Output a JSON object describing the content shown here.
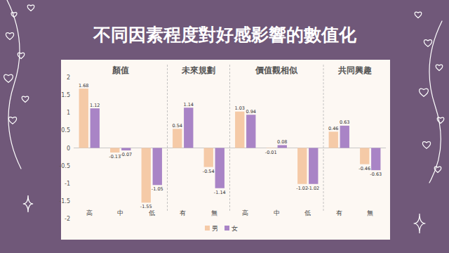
{
  "chart_data": {
    "type": "bar",
    "title": "不同因素程度對好感影響的數值化",
    "categories": [
      "高",
      "中",
      "低",
      "有",
      "無",
      "高",
      "中",
      "低",
      "有",
      "無"
    ],
    "groups": [
      {
        "label": "顏值",
        "size": 3
      },
      {
        "label": "未來規劃",
        "size": 2
      },
      {
        "label": "價值觀相似",
        "size": 3
      },
      {
        "label": "共同興趣",
        "size": 2
      }
    ],
    "series": [
      {
        "name": "男",
        "color": "#f5caa7",
        "values": [
          1.68,
          -0.13,
          -1.55,
          0.54,
          -0.54,
          1.03,
          -0.01,
          -1.02,
          0.46,
          -0.46
        ]
      },
      {
        "name": "女",
        "color": "#a984c6",
        "values": [
          1.12,
          -0.07,
          -1.05,
          1.14,
          -1.14,
          0.94,
          0.08,
          -1.02,
          0.63,
          -0.63
        ]
      }
    ],
    "ylim": [
      -2,
      2
    ],
    "yticks": [
      -2,
      -1.5,
      -1,
      -0.5,
      0,
      0.5,
      1,
      1.5,
      2
    ],
    "grid": false,
    "legend": "bottom",
    "data_labels": true
  }
}
